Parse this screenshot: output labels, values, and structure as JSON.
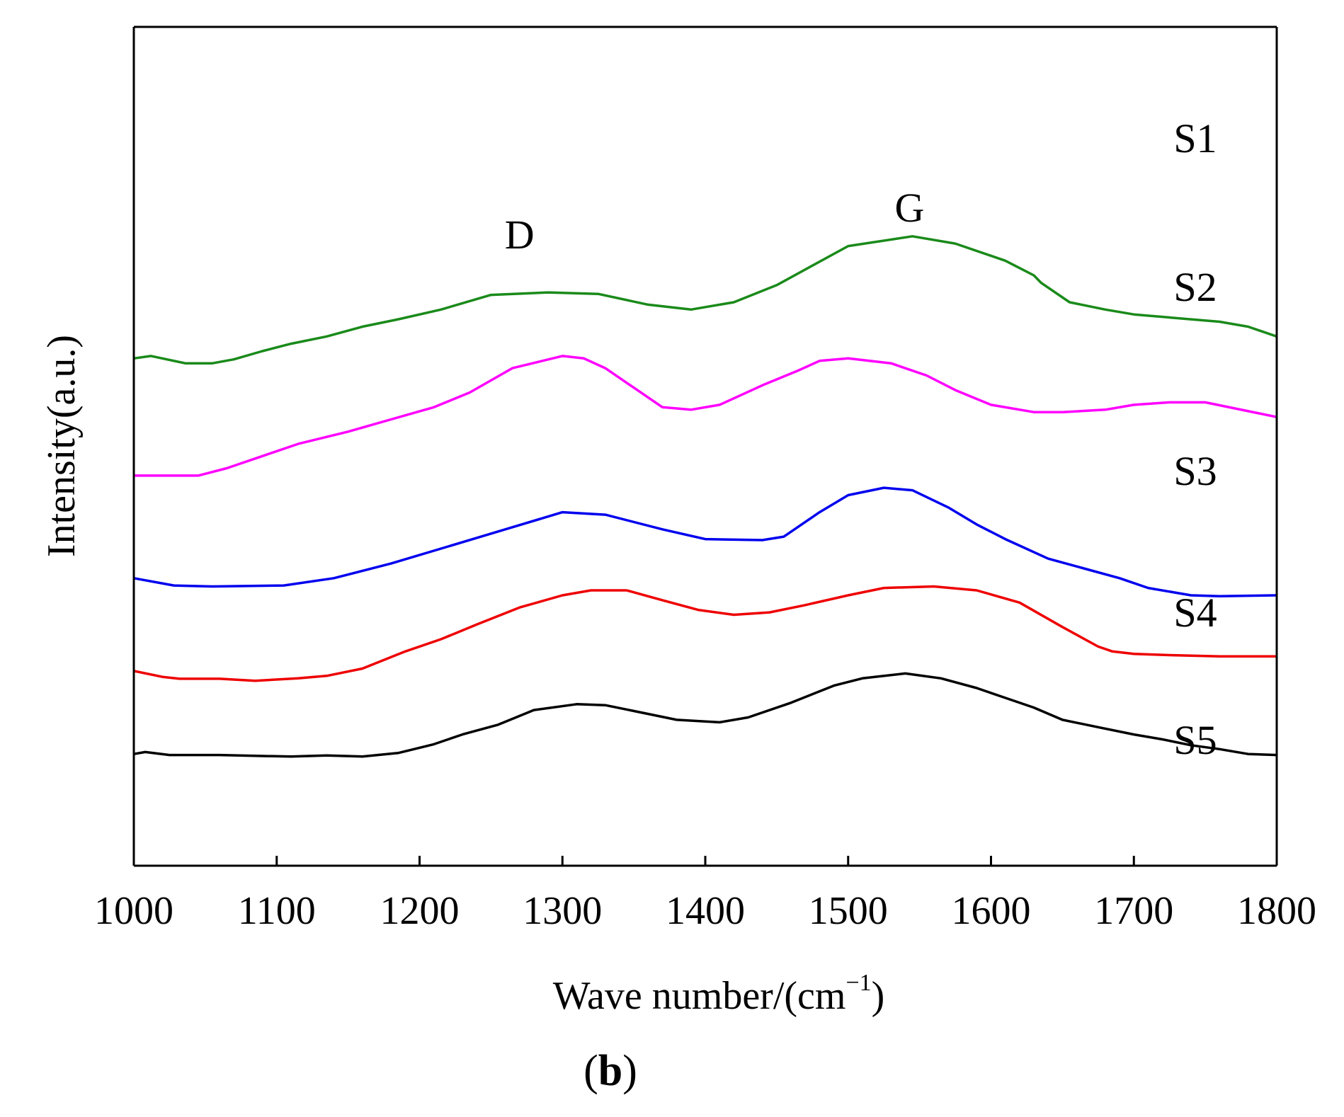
{
  "chart_data": {
    "type": "line",
    "title": "",
    "xlabel": "Wave number/(cm",
    "xlabel_sup": "−1",
    "xlabel_end": ")",
    "ylabel": "Intensity(a.u.)",
    "xlim": [
      1000,
      1800
    ],
    "xticks": [
      "1000",
      "1100",
      "1200",
      "1300",
      "1400",
      "1500",
      "1600",
      "1700",
      "1800"
    ],
    "panel_label": {
      "open": "(",
      "bold": "b",
      "close": ")"
    },
    "annotations": [
      {
        "text": "D",
        "x": 1270,
        "y": 11.55
      },
      {
        "text": "G",
        "x": 1543,
        "y": 12.1
      }
    ],
    "series": [
      {
        "name": "S1",
        "color": "#1a8a1a",
        "x": [
          1000,
          1012,
          1036,
          1055,
          1070,
          1090,
          1110,
          1135,
          1160,
          1185,
          1215,
          1250,
          1290,
          1325,
          1360,
          1390,
          1420,
          1450,
          1475,
          1500,
          1545,
          1575,
          1610,
          1630,
          1635,
          1655,
          1680,
          1700,
          1740,
          1760,
          1780,
          1800
        ],
        "y": [
          9.3,
          9.35,
          9.2,
          9.2,
          9.28,
          9.45,
          9.6,
          9.75,
          9.95,
          10.1,
          10.3,
          10.6,
          10.65,
          10.62,
          10.4,
          10.3,
          10.45,
          10.8,
          11.2,
          11.6,
          11.8,
          11.65,
          11.3,
          11.0,
          10.85,
          10.45,
          10.3,
          10.2,
          10.1,
          10.05,
          9.95,
          9.75
        ]
      },
      {
        "name": "S2",
        "color": "#ff00ff",
        "x": [
          1000,
          1045,
          1065,
          1090,
          1115,
          1150,
          1180,
          1210,
          1235,
          1265,
          1300,
          1315,
          1330,
          1355,
          1370,
          1390,
          1410,
          1440,
          1465,
          1480,
          1500,
          1530,
          1555,
          1575,
          1600,
          1630,
          1650,
          1680,
          1700,
          1725,
          1750,
          1800
        ],
        "y": [
          6.9,
          6.9,
          7.05,
          7.3,
          7.55,
          7.8,
          8.05,
          8.3,
          8.6,
          9.1,
          9.35,
          9.3,
          9.1,
          8.6,
          8.3,
          8.25,
          8.35,
          8.75,
          9.05,
          9.25,
          9.3,
          9.2,
          8.95,
          8.65,
          8.35,
          8.2,
          8.2,
          8.25,
          8.35,
          8.4,
          8.4,
          8.1
        ]
      },
      {
        "name": "S3",
        "color": "#0000ee",
        "x": [
          1000,
          1028,
          1055,
          1105,
          1140,
          1180,
          1220,
          1260,
          1300,
          1330,
          1370,
          1400,
          1440,
          1455,
          1480,
          1500,
          1525,
          1545,
          1570,
          1590,
          1610,
          1640,
          1665,
          1690,
          1710,
          1740,
          1760,
          1800
        ],
        "y": [
          4.8,
          4.65,
          4.63,
          4.65,
          4.8,
          5.1,
          5.45,
          5.8,
          6.15,
          6.1,
          5.8,
          5.6,
          5.58,
          5.65,
          6.15,
          6.5,
          6.65,
          6.6,
          6.25,
          5.9,
          5.6,
          5.2,
          5.0,
          4.8,
          4.6,
          4.45,
          4.43,
          4.45
        ]
      },
      {
        "name": "S4",
        "color": "#ee0000",
        "x": [
          1000,
          1020,
          1032,
          1060,
          1085,
          1115,
          1135,
          1160,
          1190,
          1215,
          1240,
          1270,
          1300,
          1320,
          1345,
          1370,
          1395,
          1420,
          1445,
          1470,
          1500,
          1525,
          1560,
          1590,
          1620,
          1650,
          1675,
          1685,
          1700,
          1730,
          1760,
          1800
        ],
        "y": [
          2.9,
          2.78,
          2.74,
          2.74,
          2.7,
          2.75,
          2.8,
          2.95,
          3.3,
          3.55,
          3.85,
          4.2,
          4.45,
          4.55,
          4.55,
          4.35,
          4.15,
          4.05,
          4.1,
          4.25,
          4.45,
          4.6,
          4.63,
          4.55,
          4.3,
          3.8,
          3.4,
          3.3,
          3.25,
          3.22,
          3.2,
          3.2
        ]
      },
      {
        "name": "S5",
        "color": "#000000",
        "x": [
          1000,
          1008,
          1025,
          1060,
          1090,
          1110,
          1135,
          1160,
          1185,
          1210,
          1230,
          1255,
          1280,
          1310,
          1330,
          1355,
          1380,
          1410,
          1430,
          1460,
          1490,
          1510,
          1540,
          1565,
          1590,
          1610,
          1630,
          1650,
          1675,
          1700,
          1720,
          1740,
          1760,
          1780,
          1800
        ],
        "y": [
          1.2,
          1.24,
          1.18,
          1.18,
          1.16,
          1.15,
          1.17,
          1.15,
          1.22,
          1.4,
          1.6,
          1.8,
          2.1,
          2.22,
          2.2,
          2.05,
          1.9,
          1.85,
          1.95,
          2.25,
          2.6,
          2.75,
          2.85,
          2.75,
          2.55,
          2.35,
          2.15,
          1.9,
          1.75,
          1.6,
          1.5,
          1.38,
          1.3,
          1.2,
          1.18
        ]
      }
    ]
  }
}
